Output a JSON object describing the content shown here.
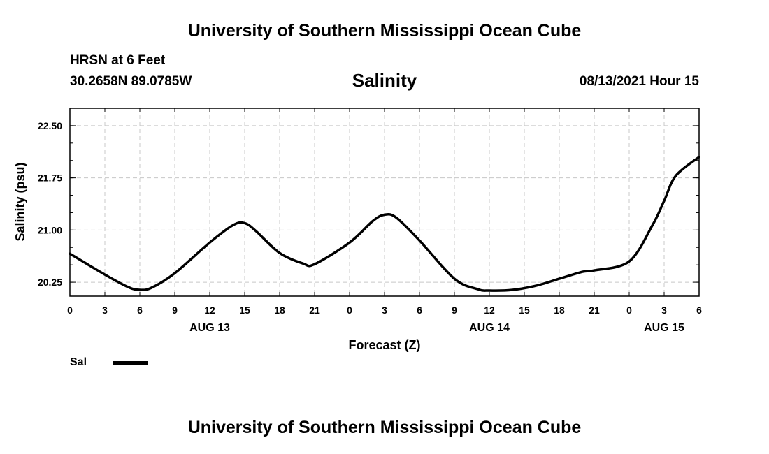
{
  "header": {
    "org_title": "University of Southern Mississippi Ocean Cube",
    "station": "HRSN at 6 Feet",
    "coordinates": "30.2658N  89.0785W",
    "valid_time": "08/13/2021 Hour 15"
  },
  "footer": {
    "org_title": "University of Southern Mississippi Ocean Cube"
  },
  "legend": {
    "label": "Sal",
    "color": "#000000"
  },
  "chart_data": {
    "type": "line",
    "title": "Salinity",
    "xlabel": "Forecast (Z)",
    "ylabel": "Salinity (psu)",
    "xlim": [
      0,
      54
    ],
    "ylim": [
      20.05,
      22.75
    ],
    "grid": true,
    "x_tick_values": [
      0,
      3,
      6,
      9,
      12,
      15,
      18,
      21,
      24,
      27,
      30,
      33,
      36,
      39,
      42,
      45,
      48,
      51,
      54
    ],
    "x_tick_labels": [
      "0",
      "3",
      "6",
      "9",
      "12",
      "15",
      "18",
      "21",
      "0",
      "3",
      "6",
      "9",
      "12",
      "15",
      "18",
      "21",
      "0",
      "3",
      "6"
    ],
    "y_tick_values": [
      20.25,
      21.0,
      21.75,
      22.5
    ],
    "y_tick_labels": [
      "20.25",
      "21.00",
      "21.75",
      "22.50"
    ],
    "day_labels": [
      {
        "x": 12,
        "label": "AUG 13"
      },
      {
        "x": 36,
        "label": "AUG 14"
      },
      {
        "x": 51,
        "label": "AUG 15"
      }
    ],
    "series": [
      {
        "name": "Sal",
        "x": [
          0,
          3,
          5,
          6,
          7,
          9,
          12,
          14,
          15,
          16,
          18,
          20,
          21,
          24,
          26,
          27,
          28,
          30,
          33,
          35,
          36,
          38,
          40,
          42,
          44,
          45,
          48,
          50,
          51,
          52,
          54
        ],
        "y": [
          20.66,
          20.36,
          20.18,
          20.14,
          20.17,
          20.38,
          20.82,
          21.07,
          21.1,
          20.98,
          20.67,
          20.52,
          20.51,
          20.82,
          21.13,
          21.22,
          21.18,
          20.85,
          20.3,
          20.15,
          20.13,
          20.14,
          20.2,
          20.3,
          20.4,
          20.42,
          20.55,
          21.07,
          21.42,
          21.78,
          22.05
        ]
      }
    ]
  }
}
